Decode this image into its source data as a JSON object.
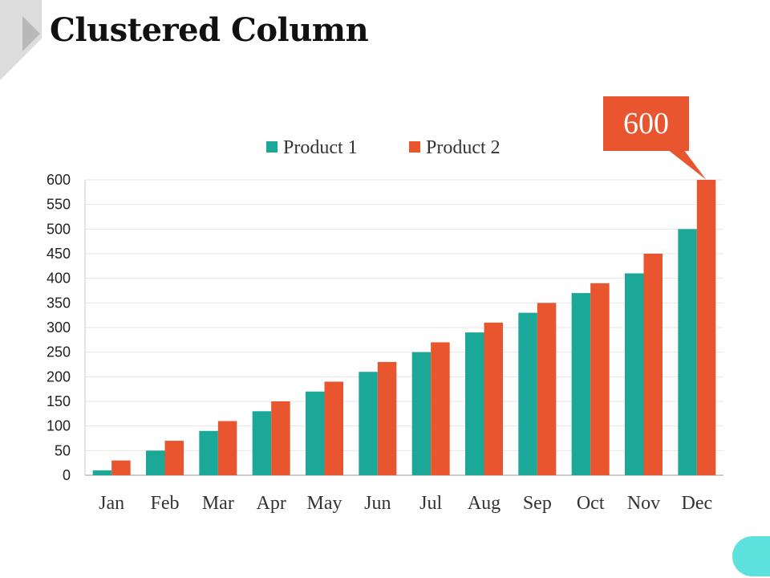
{
  "page": {
    "title": "Clustered Column"
  },
  "callout": {
    "text": "600",
    "color": "#E9552F"
  },
  "decor": {
    "corner_color": "#DCDCDC",
    "corner_arrow_color": "#B8B8B8",
    "pill_color": "#5CE1DC"
  },
  "chart_data": {
    "type": "bar",
    "title": "",
    "xlabel": "",
    "ylabel": "",
    "categories": [
      "Jan",
      "Feb",
      "Mar",
      "Apr",
      "May",
      "Jun",
      "Jul",
      "Aug",
      "Sep",
      "Oct",
      "Nov",
      "Dec"
    ],
    "series": [
      {
        "name": "Product  1",
        "color": "#1BA899",
        "values": [
          10,
          50,
          90,
          130,
          170,
          210,
          250,
          290,
          330,
          370,
          410,
          500
        ]
      },
      {
        "name": "Product  2",
        "color": "#E9552F",
        "values": [
          30,
          70,
          110,
          150,
          190,
          230,
          270,
          310,
          350,
          390,
          450,
          600
        ]
      }
    ],
    "ylim": [
      0,
      600
    ],
    "ytick_step": 50,
    "grid": true,
    "legend": "top-center"
  }
}
